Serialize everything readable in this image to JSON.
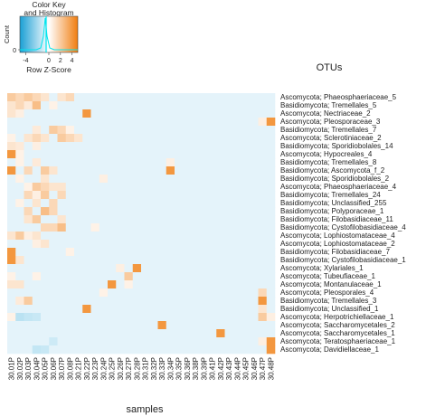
{
  "chart_data": {
    "type": "heatmap",
    "key_title_line1": "Color Key",
    "key_title_line2": "and Histogram",
    "key_ylabel": "Count",
    "key_yticks": [
      "0"
    ],
    "key_xlabel": "Row Z-Score",
    "key_xticks": [
      "-4",
      "0",
      "2",
      "4"
    ],
    "row_axis_title": "OTUs",
    "xlabel": "samples",
    "scale_range": [
      -5,
      5
    ],
    "colors": {
      "low": "#1a9fd4",
      "mid": "#ffffff",
      "high": "#f07d0f"
    },
    "columns": [
      "30.01P",
      "30.02P",
      "30.03P",
      "30.04P",
      "30.05P",
      "30.06P",
      "30.07P",
      "30.08P",
      "30.21P",
      "30.22P",
      "30.23P",
      "30.24P",
      "30.25P",
      "30.26P",
      "30.27P",
      "30.28P",
      "30.31P",
      "30.32P",
      "30.33P",
      "30.34P",
      "30.35P",
      "30.36P",
      "30.38P",
      "30.39P",
      "30.41P",
      "30.42P",
      "30.43P",
      "30.44P",
      "30.45P",
      "30.46P",
      "30.47P",
      "30.48P"
    ],
    "rows": [
      "Ascomycota; Phaeosphaeriaceae_5",
      "Basidiomycota; Tremellales_5",
      "Ascomycota; Nectriaceae_2",
      "Ascomycota; Pleosporaceae_3",
      "Basidiomycota; Tremellales_7",
      "Ascomycota; Sclerotiniaceae_2",
      "Basidiomycota; Sporidiobolales_14",
      "Ascomycota; Hypocreales_4",
      "Basidiomycota; Tremellales_8",
      "Basidiomycota; Ascomycota_f_2",
      "Basidiomycota; Sporidiobolales_2",
      "Ascomycota; Phaeosphaeriaceae_4",
      "Basidiomycota; Tremellales_24",
      "Basidiomycota; Unclassified_255",
      "Basidiomycota; Polyporaceae_1",
      "Basidiomycota; Filobasidiaceae_11",
      "Basidiomycota; Cystofilobasidiaceae_4",
      "Ascomycota; Lophiostomataceae_4",
      "Ascomycota; Lophiostomataceae_2",
      "Basidiomycota; Filobasidiaceae_7",
      "Basidiomycota; Cystofilobasidiaceae_1",
      "Ascomycota; Xylariales_1",
      "Ascomycota; Tubeufiaceae_1",
      "Ascomycota; Montanulaceae_1",
      "Ascomycota; Pleosporales_4",
      "Basidiomycota; Tremellales_3",
      "Basidiomycota; Unclassified_1",
      "Ascomycota; Herpotrichiellaceae_1",
      "Ascomycota; Saccharomycetales_2",
      "Ascomycota; Saccharomycetales_1",
      "Ascomycota; Teratosphaeriaceae_1",
      "Ascomycota; Davidiellaceae_1"
    ],
    "baseline_z": -0.6,
    "high_cells": [
      [
        0,
        0,
        2
      ],
      [
        0,
        1,
        1.5
      ],
      [
        0,
        2,
        2
      ],
      [
        0,
        3,
        1.5
      ],
      [
        0,
        4,
        1
      ],
      [
        0,
        6,
        1
      ],
      [
        0,
        7,
        1.5
      ],
      [
        1,
        0,
        1
      ],
      [
        1,
        1,
        1.5
      ],
      [
        1,
        2,
        0.8
      ],
      [
        1,
        3,
        2.5
      ],
      [
        1,
        5,
        0.5
      ],
      [
        2,
        0,
        1
      ],
      [
        2,
        1,
        0.6
      ],
      [
        2,
        9,
        4
      ],
      [
        3,
        31,
        4
      ],
      [
        3,
        30,
        0.6
      ],
      [
        4,
        3,
        0.8
      ],
      [
        4,
        5,
        2
      ],
      [
        4,
        6,
        1.5
      ],
      [
        4,
        7,
        0.5
      ],
      [
        5,
        0,
        0.5
      ],
      [
        5,
        2,
        1
      ],
      [
        5,
        3,
        1.5
      ],
      [
        5,
        4,
        1
      ],
      [
        5,
        6,
        2
      ],
      [
        5,
        7,
        1.5
      ],
      [
        5,
        8,
        1
      ],
      [
        6,
        0,
        1
      ],
      [
        6,
        1,
        0.8
      ],
      [
        6,
        3,
        0.6
      ],
      [
        7,
        0,
        4
      ],
      [
        7,
        1,
        0.5
      ],
      [
        8,
        1,
        0.5
      ],
      [
        8,
        3,
        0.8
      ],
      [
        8,
        19,
        0.6
      ],
      [
        9,
        0,
        4
      ],
      [
        9,
        2,
        1.5
      ],
      [
        9,
        4,
        2
      ],
      [
        9,
        5,
        1
      ],
      [
        9,
        19,
        4
      ],
      [
        10,
        1,
        0.5
      ],
      [
        10,
        4,
        1
      ],
      [
        10,
        11,
        0.6
      ],
      [
        11,
        2,
        0.5
      ],
      [
        11,
        3,
        2
      ],
      [
        11,
        4,
        1.5
      ],
      [
        11,
        5,
        1
      ],
      [
        11,
        6,
        1
      ],
      [
        12,
        2,
        1.5
      ],
      [
        12,
        3,
        0.6
      ],
      [
        12,
        4,
        2
      ],
      [
        12,
        6,
        1.5
      ],
      [
        13,
        1,
        0.5
      ],
      [
        13,
        3,
        1
      ],
      [
        13,
        5,
        1.5
      ],
      [
        14,
        2,
        1.5
      ],
      [
        14,
        4,
        2.5
      ],
      [
        14,
        5,
        1.5
      ],
      [
        15,
        2,
        1
      ],
      [
        15,
        3,
        2
      ],
      [
        15,
        6,
        1
      ],
      [
        16,
        4,
        1.5
      ],
      [
        16,
        5,
        1.5
      ],
      [
        16,
        6,
        2.5
      ],
      [
        16,
        10,
        0.5
      ],
      [
        17,
        0,
        1
      ],
      [
        17,
        1,
        2
      ],
      [
        17,
        2,
        0.6
      ],
      [
        17,
        3,
        1
      ],
      [
        18,
        3,
        0.6
      ],
      [
        18,
        4,
        1
      ],
      [
        19,
        0,
        4
      ],
      [
        19,
        7,
        0.5
      ],
      [
        20,
        0,
        4
      ],
      [
        20,
        1,
        1
      ],
      [
        21,
        15,
        4
      ],
      [
        21,
        13,
        0.6
      ],
      [
        22,
        0,
        0.5
      ],
      [
        22,
        3,
        0.5
      ],
      [
        22,
        14,
        2
      ],
      [
        23,
        0,
        1
      ],
      [
        23,
        1,
        1
      ],
      [
        23,
        12,
        4
      ],
      [
        23,
        14,
        0.5
      ],
      [
        24,
        11,
        0.5
      ],
      [
        24,
        30,
        1.5
      ],
      [
        25,
        1,
        0.8
      ],
      [
        25,
        2,
        2
      ],
      [
        25,
        30,
        4
      ],
      [
        26,
        9,
        4
      ],
      [
        26,
        30,
        1
      ],
      [
        27,
        0,
        0.5
      ],
      [
        27,
        30,
        2
      ],
      [
        27,
        31,
        0.6
      ],
      [
        28,
        18,
        4
      ],
      [
        29,
        25,
        4
      ],
      [
        30,
        31,
        4
      ],
      [
        30,
        30,
        0.6
      ],
      [
        31,
        31,
        4
      ]
    ],
    "low_cells": [
      [
        27,
        1,
        -1.5
      ],
      [
        27,
        2,
        -1.3
      ],
      [
        27,
        3,
        -1.2
      ],
      [
        31,
        3,
        -1.3
      ],
      [
        31,
        4,
        -1.2
      ],
      [
        30,
        5,
        -1.1
      ]
    ]
  }
}
